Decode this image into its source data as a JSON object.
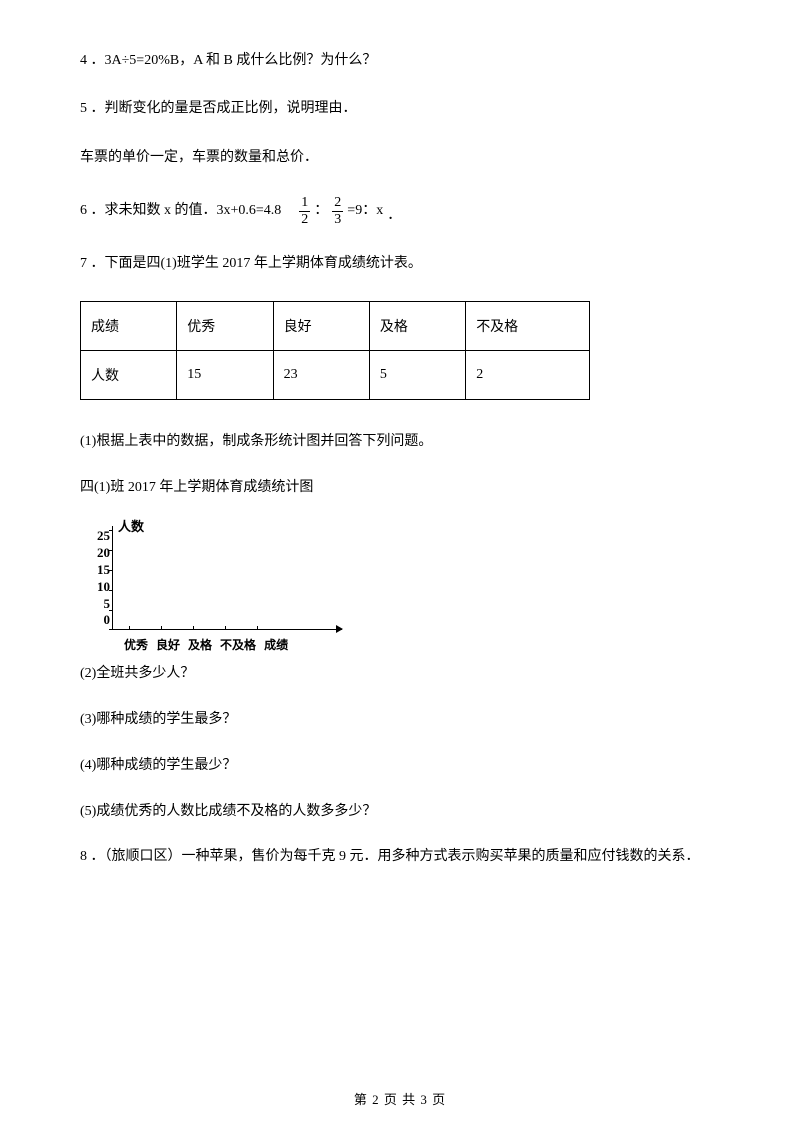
{
  "questions": {
    "q4": "4 ．3A÷5=20%B，A 和 B 成什么比例？为什么？",
    "q5": "5 ．判断变化的量是否成正比例，说明理由．",
    "q5_sub": "车票的单价一定，车票的数量和总价．",
    "q6_pre": "6 ．求未知数 x 的值．3x+0.6=4.8",
    "q6_frac1_num": "1",
    "q6_frac1_den": "2",
    "q6_colon": "：",
    "q6_frac2_num": "2",
    "q6_frac2_den": "3",
    "q6_post": "=9：x",
    "q6_dot": "．",
    "q7": "7 ．下面是四(1)班学生 2017 年上学期体育成绩统计表。",
    "q8": "8 ．（旅顺口区）一种苹果，售价为每千克 9 元．用多种方式表示购买苹果的质量和应付钱数的关系．"
  },
  "table": {
    "headers": [
      "成绩",
      "优秀",
      "良好",
      "及格",
      "不及格"
    ],
    "row_label": "人数",
    "values": [
      "15",
      "23",
      "5",
      "2"
    ]
  },
  "sub_questions": {
    "sq1": "(1)根据上表中的数据，制成条形统计图并回答下列问题。",
    "chart_title": "四(1)班 2017 年上学期体育成绩统计图",
    "sq2": "(2)全班共多少人？",
    "sq3": "(3)哪种成绩的学生最多？",
    "sq4": "(4)哪种成绩的学生最少？",
    "sq5": "(5)成绩优秀的人数比成绩不及格的人数多多少？"
  },
  "chart": {
    "y_label": "人数",
    "y_ticks": [
      "25",
      "20",
      "15",
      "10",
      "5",
      "0"
    ],
    "x_labels": [
      "优秀",
      "良好",
      "及格",
      "不及格",
      "成绩"
    ]
  },
  "footer": "第 2 页 共 3 页"
}
